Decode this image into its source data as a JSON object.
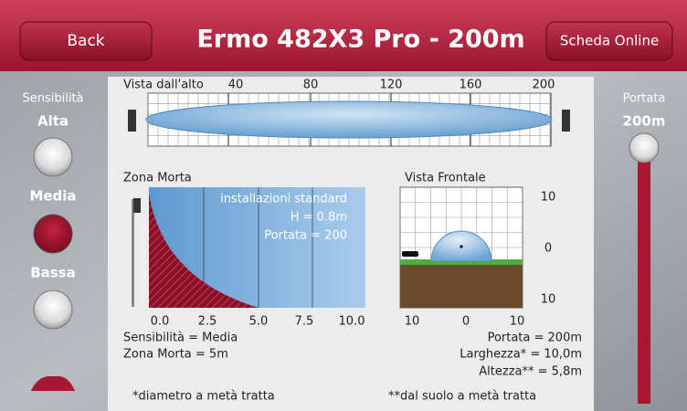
{
  "header": {
    "back": "Back",
    "title": "Ermo 482X3 Pro - 200m",
    "online": "Scheda Online"
  },
  "sensitivity": {
    "label": "Sensibilità",
    "options": [
      "Alta",
      "Media",
      "Bassa"
    ]
  },
  "range": {
    "label": "Portata",
    "value": "200m"
  },
  "top_view": {
    "title": "Vista dall'alto",
    "ticks": [
      "40",
      "80",
      "120",
      "160",
      "200"
    ]
  },
  "dead_zone": {
    "title": "Zona Morta",
    "notes": [
      "installazioni standard",
      "H = 0.8m",
      "Portata = 200"
    ],
    "ticks": [
      "0.0",
      "2.5",
      "5.0",
      "7.5",
      "10.0"
    ]
  },
  "front_view": {
    "title": "Vista Frontale",
    "right_ticks": [
      "10",
      "0",
      "10"
    ],
    "bottom_ticks": [
      "10",
      "0",
      "10"
    ]
  },
  "info_left": [
    "Sensibilità = Media",
    "Zona Morta = 5m"
  ],
  "info_right": [
    "Portata = 200m",
    "Larghezza* = 10,0m",
    "Altezza** = 5,8m"
  ],
  "footnotes": [
    "*diametro a metà tratta",
    "**dal suolo a metà tratta"
  ]
}
